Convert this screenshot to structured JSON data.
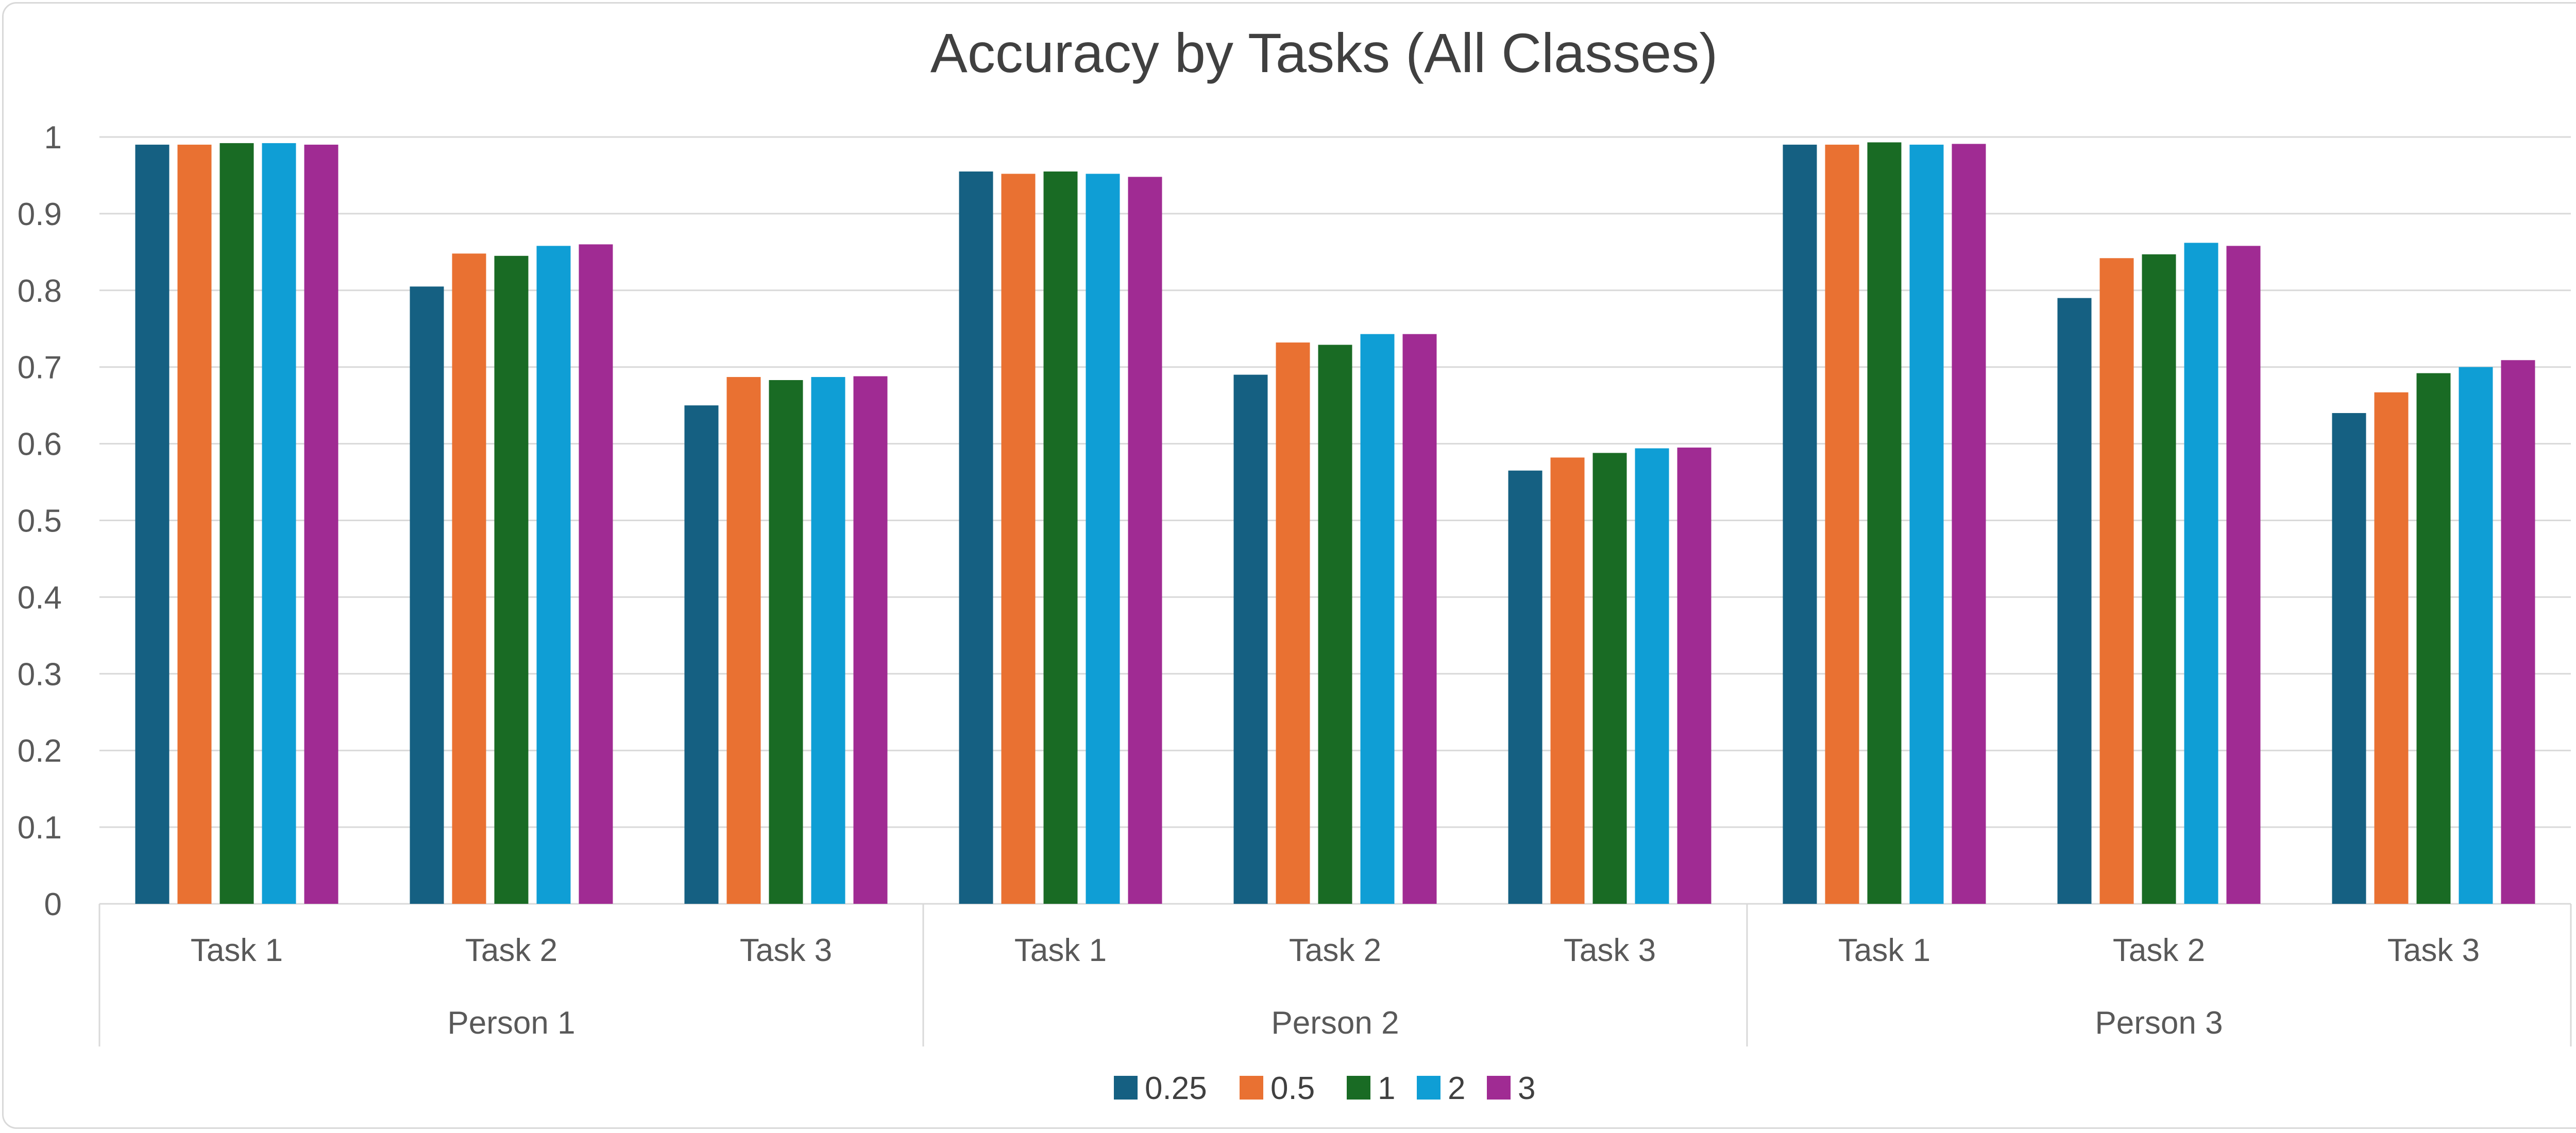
{
  "chart_data": {
    "type": "bar",
    "title": "Accuracy by Tasks (All Classes)",
    "xlabel": "",
    "ylabel": "",
    "ylim": [
      0,
      1
    ],
    "yticks": [
      "0",
      "0.1",
      "0.2",
      "0.3",
      "0.4",
      "0.5",
      "0.6",
      "0.7",
      "0.8",
      "0.9",
      "1"
    ],
    "grid": true,
    "legend_position": "bottom",
    "groups": [
      "Person 1",
      "Person 2",
      "Person 3"
    ],
    "categories": [
      "Task 1",
      "Task 2",
      "Task 3",
      "Task 1",
      "Task 2",
      "Task 3",
      "Task 1",
      "Task 2",
      "Task 3"
    ],
    "series": [
      {
        "name": "0.25",
        "color": "#156082",
        "values": [
          0.99,
          0.805,
          0.65,
          0.955,
          0.69,
          0.565,
          0.99,
          0.79,
          0.64
        ]
      },
      {
        "name": "0.5",
        "color": "#E97132",
        "values": [
          0.99,
          0.848,
          0.687,
          0.952,
          0.732,
          0.582,
          0.99,
          0.842,
          0.667
        ]
      },
      {
        "name": "1",
        "color": "#196B24",
        "values": [
          0.992,
          0.845,
          0.683,
          0.955,
          0.729,
          0.588,
          0.993,
          0.847,
          0.692
        ]
      },
      {
        "name": "2",
        "color": "#0F9ED5",
        "values": [
          0.992,
          0.858,
          0.687,
          0.952,
          0.743,
          0.594,
          0.99,
          0.862,
          0.7
        ]
      },
      {
        "name": "3",
        "color": "#A02B93",
        "values": [
          0.99,
          0.86,
          0.688,
          0.948,
          0.743,
          0.595,
          0.991,
          0.858,
          0.709
        ]
      }
    ]
  }
}
